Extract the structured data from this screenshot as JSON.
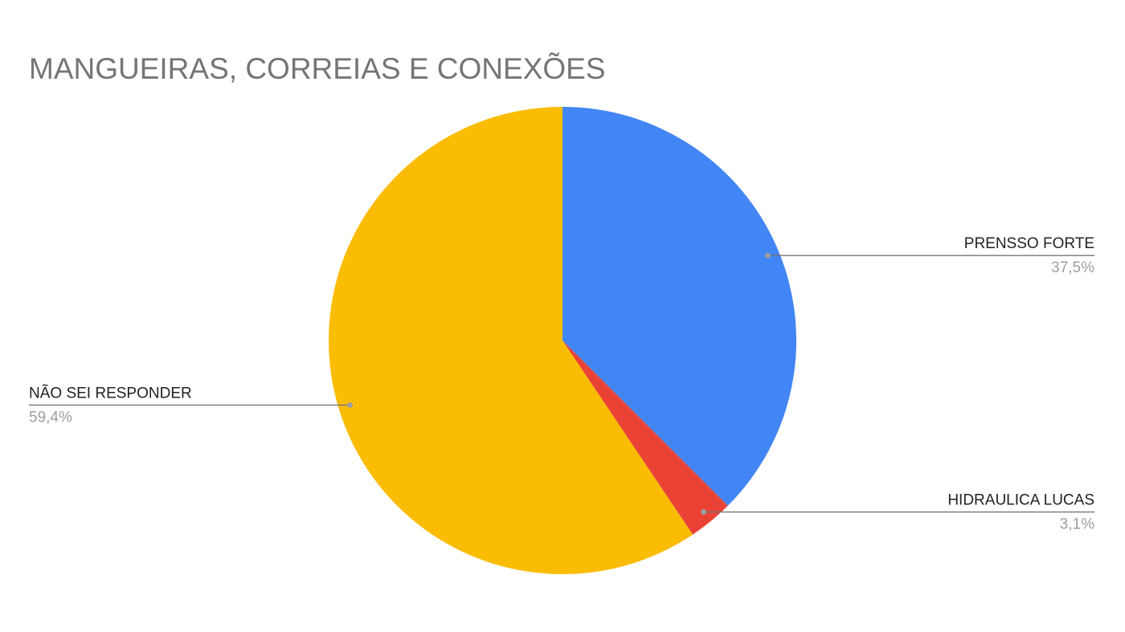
{
  "chart_data": {
    "type": "pie",
    "title": "MANGUEIRAS, CORREIAS E CONEXÕES",
    "categories": [
      "PRENSSO FORTE",
      "HIDRAULICA LUCAS",
      "NÃO SEI RESPONDER"
    ],
    "values": [
      37.5,
      3.1,
      59.4
    ],
    "value_labels": [
      "37,5%",
      "3,1%",
      "59,4%"
    ],
    "colors": [
      "#4285f4",
      "#ea4335",
      "#fbbc04"
    ]
  }
}
